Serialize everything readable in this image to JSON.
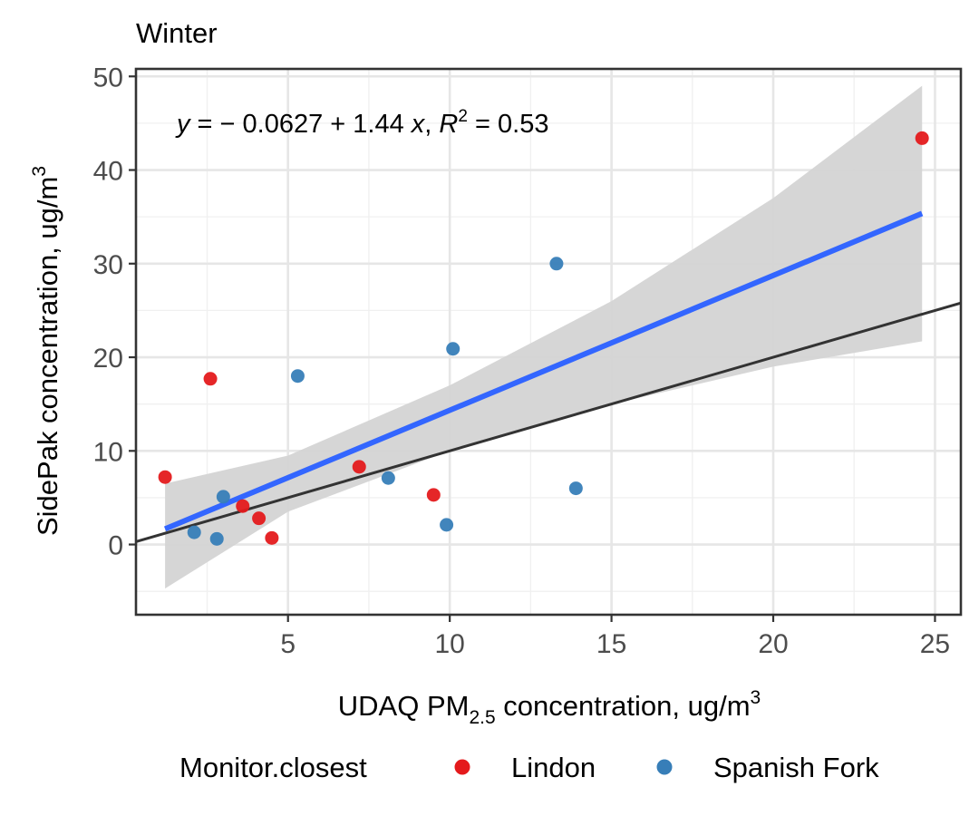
{
  "chart_data": {
    "type": "scatter",
    "title": "Winter",
    "xlabel": {
      "main": "UDAQ PM",
      "sub": "2.5",
      "rest": " concentration, ug/m",
      "sup": "3"
    },
    "ylabel": {
      "main": "SidePak concentration, ug/m",
      "sup": "3"
    },
    "xlim": [
      0.3,
      25.8
    ],
    "ylim": [
      -7.5,
      50.8
    ],
    "xticks": [
      5,
      10,
      15,
      20,
      25
    ],
    "yticks": [
      0,
      10,
      20,
      30,
      40,
      50
    ],
    "x_tick_labels": [
      "5",
      "10",
      "15",
      "20",
      "25"
    ],
    "y_tick_labels": [
      "0",
      "10",
      "20",
      "30",
      "40",
      "50"
    ],
    "grid": true,
    "equation": {
      "y": "y",
      "eq1": " = − 0.0627 + 1.44 ",
      "x": "x",
      "comma": ", ",
      "R": "R",
      "sup": "2",
      "eq2": " = 0.53"
    },
    "series": [
      {
        "name": "Lindon",
        "color": "#e41a1c",
        "points": [
          {
            "x": 1.2,
            "y": 7.2
          },
          {
            "x": 2.6,
            "y": 17.7
          },
          {
            "x": 3.6,
            "y": 4.1
          },
          {
            "x": 4.1,
            "y": 2.8
          },
          {
            "x": 4.5,
            "y": 0.7
          },
          {
            "x": 7.2,
            "y": 8.3
          },
          {
            "x": 9.5,
            "y": 5.3
          },
          {
            "x": 24.6,
            "y": 43.4
          }
        ]
      },
      {
        "name": "Spanish Fork",
        "color": "#377eb8",
        "points": [
          {
            "x": 2.1,
            "y": 1.3
          },
          {
            "x": 2.8,
            "y": 0.6
          },
          {
            "x": 3.0,
            "y": 5.1
          },
          {
            "x": 5.3,
            "y": 18.0
          },
          {
            "x": 8.1,
            "y": 7.1
          },
          {
            "x": 9.9,
            "y": 2.1
          },
          {
            "x": 10.1,
            "y": 20.9
          },
          {
            "x": 13.3,
            "y": 30.0
          },
          {
            "x": 13.9,
            "y": 6.0
          }
        ]
      }
    ],
    "regression": {
      "intercept": -0.0627,
      "slope": 1.44,
      "x_range": [
        1.2,
        24.6
      ],
      "color": "#3366ff"
    },
    "confidence_band": {
      "color": "#d4d4d4",
      "x": [
        1.2,
        5,
        10,
        15,
        20,
        24.6
      ],
      "upper": [
        6.5,
        9.5,
        17,
        26,
        37,
        49
      ],
      "lower": [
        -4.7,
        3.5,
        10,
        15,
        19,
        21.7
      ]
    },
    "identity_line": {
      "intercept": 0,
      "slope": 1,
      "color": "#333333"
    },
    "legend": {
      "title": "Monitor.closest",
      "position": "bottom",
      "items": [
        {
          "label": "Lindon",
          "color": "#e41a1c"
        },
        {
          "label": "Spanish Fork",
          "color": "#377eb8"
        }
      ]
    }
  }
}
